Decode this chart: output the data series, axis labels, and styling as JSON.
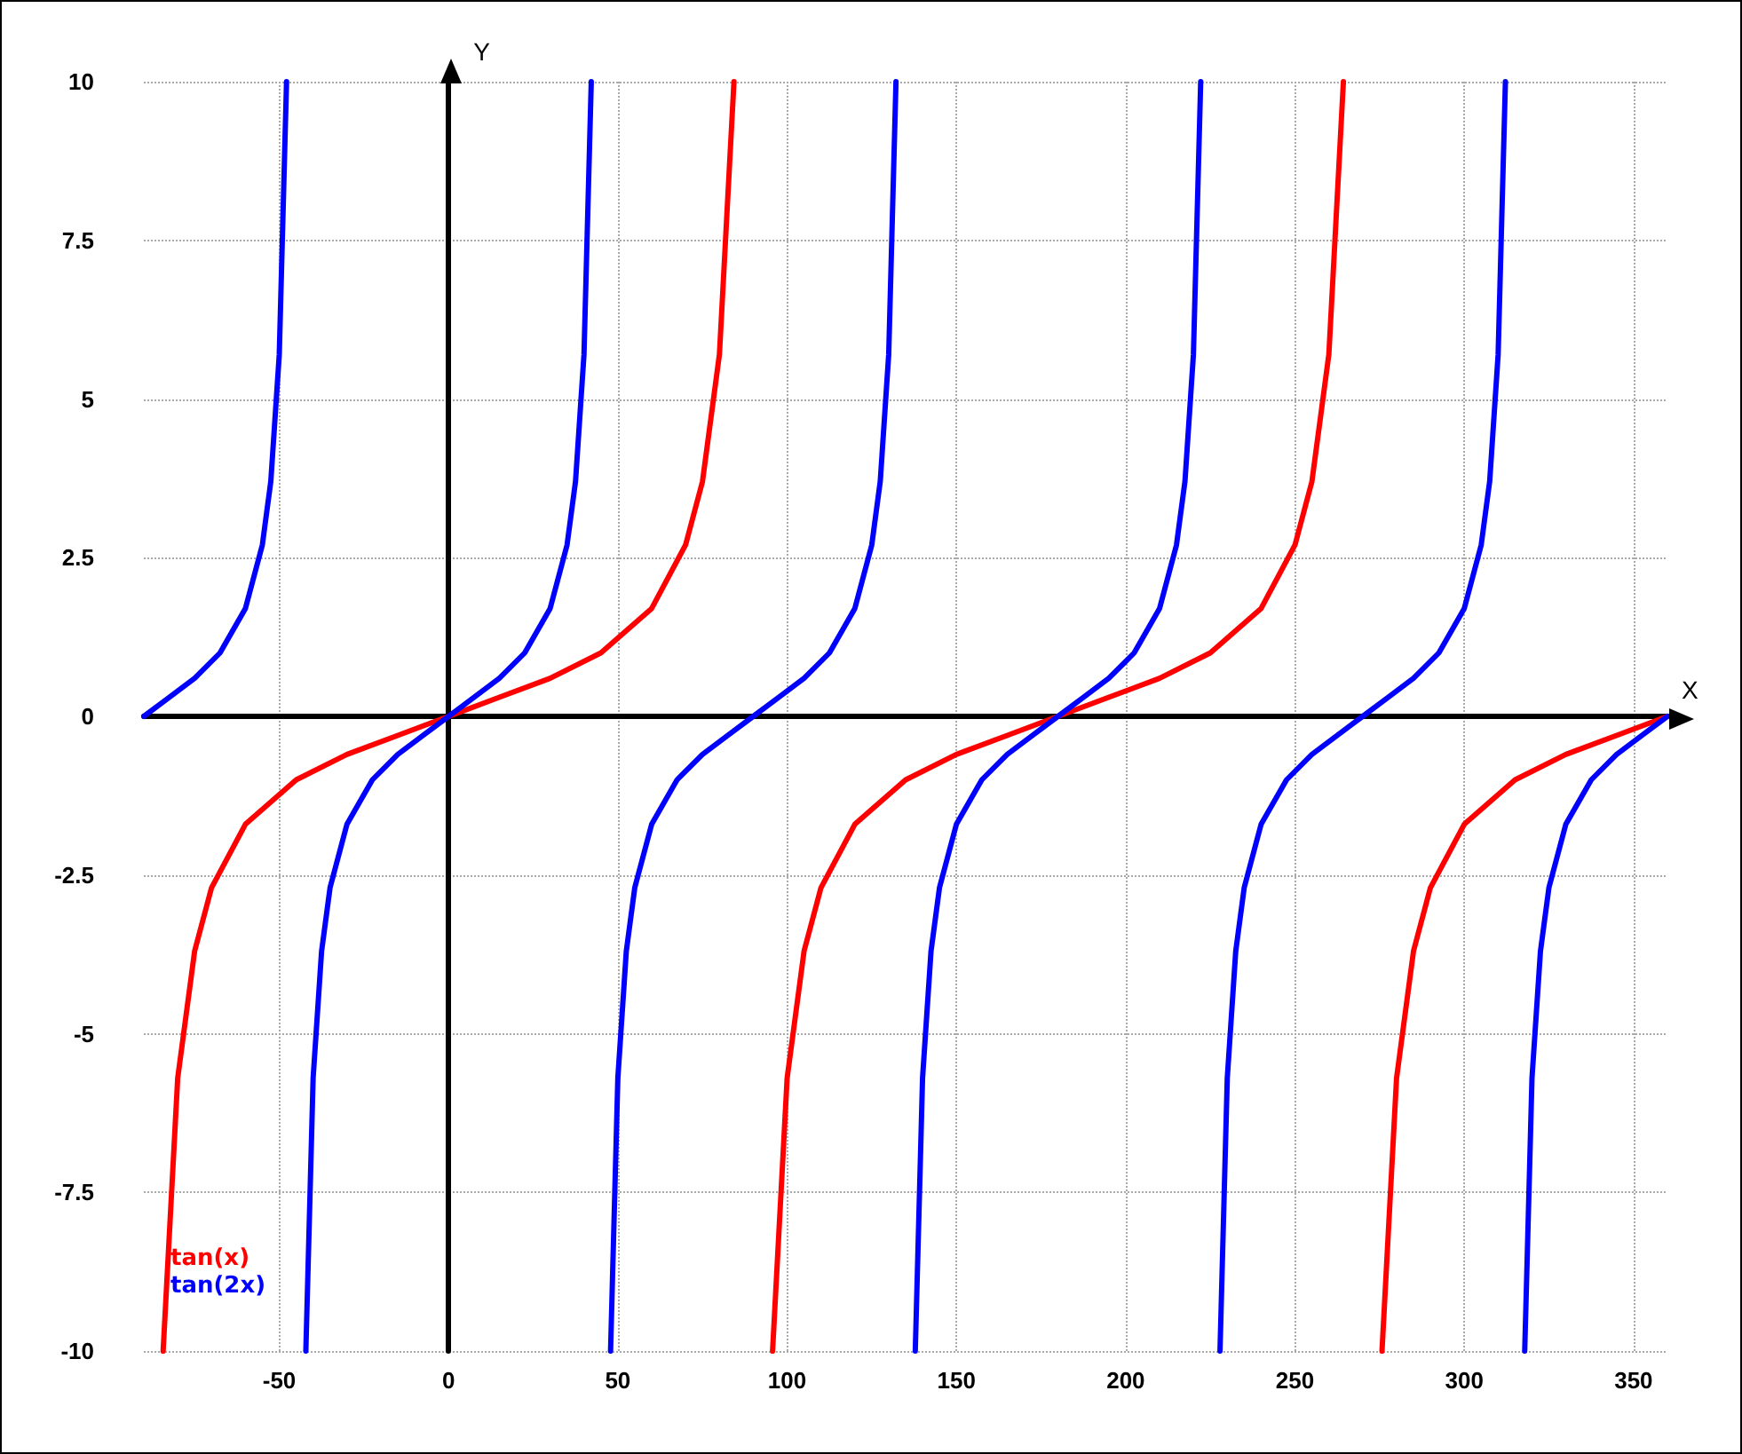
{
  "chart_data": {
    "type": "line",
    "xlabel": "X",
    "ylabel": "Y",
    "xlim": [
      -90,
      360
    ],
    "ylim": [
      -10,
      10
    ],
    "xticks": [
      -50,
      0,
      50,
      100,
      150,
      200,
      250,
      300,
      350
    ],
    "yticks": [
      -10,
      -7.5,
      -5,
      -2.5,
      0,
      2.5,
      5,
      7.5,
      10
    ],
    "grid": true,
    "legend": "bottom left",
    "marker": "none",
    "line_style": "solid",
    "series": [
      {
        "name": "tan(x)",
        "color": "#ff0000",
        "x": [
          -84.3,
          -80,
          -75,
          -70,
          -60,
          -45,
          -30,
          -15,
          0,
          15,
          30,
          45,
          60,
          70,
          75,
          80,
          84.3,
          90,
          95.7,
          100,
          105,
          110,
          120,
          135,
          150,
          165,
          180,
          195,
          210,
          225,
          240,
          250,
          255,
          260,
          264.3,
          270,
          275.7,
          280,
          285,
          290,
          300,
          315,
          330,
          345,
          360
        ],
        "values": [
          -10,
          -5.7,
          -3.7,
          -2.7,
          -1.7,
          -1,
          -0.6,
          -0.3,
          0,
          0.3,
          0.6,
          1,
          1.7,
          2.7,
          3.7,
          5.7,
          10,
          null,
          -10,
          -5.7,
          -3.7,
          -2.7,
          -1.7,
          -1,
          -0.6,
          -0.3,
          0,
          0.3,
          0.6,
          1,
          1.7,
          2.7,
          3.7,
          5.7,
          10,
          null,
          -10,
          -5.7,
          -3.7,
          -2.7,
          -1.7,
          -1,
          -0.6,
          -0.3,
          0
        ]
      },
      {
        "name": "tan(2x)",
        "color": "#0000ff",
        "x": [
          -90,
          -82.5,
          -75,
          -67.5,
          -60,
          -55,
          -52.5,
          -50,
          -47.85,
          -45,
          -42.15,
          -40,
          -37.5,
          -35,
          -30,
          -22.5,
          -15,
          -7.5,
          0,
          7.5,
          15,
          22.5,
          30,
          35,
          37.5,
          40,
          42.15,
          45,
          47.85,
          50,
          52.5,
          55,
          60,
          67.5,
          75,
          82.5,
          90,
          97.5,
          105,
          112.5,
          120,
          125,
          127.5,
          130,
          132.15,
          135,
          137.85,
          140,
          142.5,
          145,
          150,
          157.5,
          165,
          172.5,
          180,
          187.5,
          195,
          202.5,
          210,
          215,
          217.5,
          220,
          222.15,
          225,
          227.85,
          230,
          232.5,
          235,
          240,
          247.5,
          255,
          262.5,
          270,
          277.5,
          285,
          292.5,
          300,
          305,
          307.5,
          310,
          312.15,
          315,
          317.85,
          320,
          322.5,
          325,
          330,
          337.5,
          345,
          352.5,
          360
        ],
        "values": [
          0,
          0.3,
          0.6,
          1,
          1.7,
          2.7,
          3.7,
          5.7,
          10,
          null,
          -10,
          -5.7,
          -3.7,
          -2.7,
          -1.7,
          -1,
          -0.6,
          -0.3,
          0,
          0.3,
          0.6,
          1,
          1.7,
          2.7,
          3.7,
          5.7,
          10,
          null,
          -10,
          -5.7,
          -3.7,
          -2.7,
          -1.7,
          -1,
          -0.6,
          -0.3,
          0,
          0.3,
          0.6,
          1,
          1.7,
          2.7,
          3.7,
          5.7,
          10,
          null,
          -10,
          -5.7,
          -3.7,
          -2.7,
          -1.7,
          -1,
          -0.6,
          -0.3,
          0,
          0.3,
          0.6,
          1,
          1.7,
          2.7,
          3.7,
          5.7,
          10,
          null,
          -10,
          -5.7,
          -3.7,
          -2.7,
          -1.7,
          -1,
          -0.6,
          -0.3,
          0,
          0.3,
          0.6,
          1,
          1.7,
          2.7,
          3.7,
          5.7,
          10,
          null,
          -10,
          -5.7,
          -3.7,
          -2.7,
          -1.7,
          -1,
          -0.6,
          -0.3,
          0
        ]
      }
    ]
  }
}
